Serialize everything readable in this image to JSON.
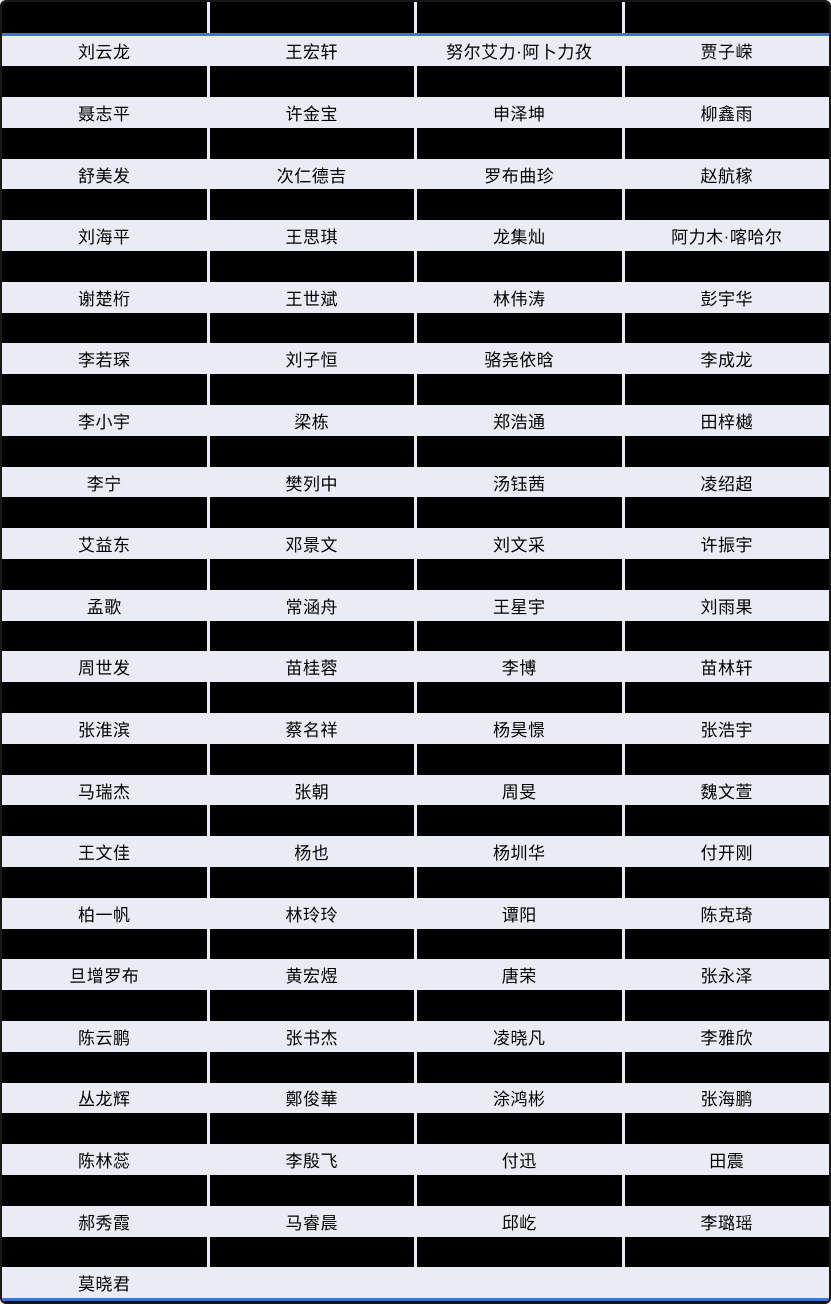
{
  "table": {
    "description": "Roster table of names; header row and every alternating data row are redacted with black bars",
    "columns": 4,
    "header_redacted": true,
    "redacted_row_between_each_name_row": true,
    "rows": [
      [
        "刘云龙",
        "王宏轩",
        "努尔艾力·阿卜力孜",
        "贾子嵘"
      ],
      [
        "聂志平",
        "许金宝",
        "申泽坤",
        "柳鑫雨"
      ],
      [
        "舒美发",
        "次仁德吉",
        "罗布曲珍",
        "赵航稼"
      ],
      [
        "刘海平",
        "王思琪",
        "龙集灿",
        "阿力木·喀哈尔"
      ],
      [
        "谢楚桁",
        "王世斌",
        "林伟涛",
        "彭宇华"
      ],
      [
        "李若琛",
        "刘子恒",
        "骆尧依晗",
        "李成龙"
      ],
      [
        "李小宇",
        "梁栋",
        "郑浩通",
        "田梓樾"
      ],
      [
        "李宁",
        "樊列中",
        "汤钰茜",
        "凌绍超"
      ],
      [
        "艾益东",
        "邓景文",
        "刘文采",
        "许振宇"
      ],
      [
        "孟歌",
        "常涵舟",
        "王星宇",
        "刘雨果"
      ],
      [
        "周世发",
        "苗桂蓉",
        "李博",
        "苗林轩"
      ],
      [
        "张淮滨",
        "蔡名祥",
        "杨昊憬",
        "张浩宇"
      ],
      [
        "马瑞杰",
        "张朝",
        "周旻",
        "魏文萱"
      ],
      [
        "王文佳",
        "杨也",
        "杨圳华",
        "付开刚"
      ],
      [
        "柏一帆",
        "林玲玲",
        "谭阳",
        "陈克琦"
      ],
      [
        "旦增罗布",
        "黄宏煜",
        "唐荣",
        "张永泽"
      ],
      [
        "陈云鹏",
        "张书杰",
        "凌晓凡",
        "李雅欣"
      ],
      [
        "丛龙辉",
        "鄭俊華",
        "涂鸿彬",
        "张海鹏"
      ],
      [
        "陈林蕊",
        "李殷飞",
        "付迅",
        "田震"
      ],
      [
        "郝秀霞",
        "马睿晨",
        "邱屹",
        "李璐瑶"
      ],
      [
        "莫晓君",
        "",
        "",
        ""
      ]
    ]
  },
  "colors": {
    "row_background": "#e9ecf5",
    "accent_line": "#4472c4",
    "redaction_bar": "#000000",
    "text": "#000000",
    "outer_border": "#181818"
  }
}
